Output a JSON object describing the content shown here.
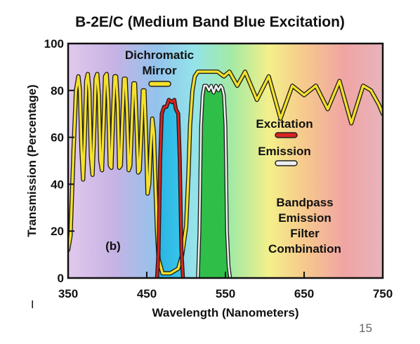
{
  "chart_data": {
    "type": "line",
    "title": "B-2E/C (Medium Band Blue Excitation)",
    "xlabel": "Wavelength (Nanometers)",
    "ylabel": "Transmission (Percentage)",
    "xlim": [
      350,
      750
    ],
    "ylim": [
      0,
      100
    ],
    "xticks": [
      "350",
      "450",
      "550",
      "650",
      "750"
    ],
    "yticks": [
      "0",
      "20",
      "40",
      "60",
      "80",
      "100"
    ],
    "grid": false,
    "panel_label": "(b)",
    "series": [
      {
        "name": "Dichromatic Mirror",
        "color": "#f5e12b",
        "x": [
          347,
          350,
          353,
          357,
          360,
          363,
          365,
          367,
          369,
          371,
          373,
          375,
          377,
          379,
          381,
          383,
          385,
          387,
          389,
          391,
          393,
          395,
          397,
          399,
          401,
          403,
          405,
          407,
          409,
          411,
          413,
          415,
          417,
          419,
          421,
          423,
          425,
          427,
          429,
          431,
          433,
          435,
          437,
          439,
          441,
          443,
          445,
          447,
          449,
          451,
          453,
          455,
          457,
          459,
          461,
          463,
          465,
          470,
          480,
          490,
          495,
          500,
          503,
          505,
          508,
          511,
          515,
          520,
          530,
          540,
          548,
          555,
          565,
          575,
          590,
          605,
          620,
          635,
          650,
          665,
          680,
          695,
          710,
          725,
          735,
          745,
          750
        ],
        "y": [
          12,
          12,
          18,
          55,
          80,
          86,
          80,
          55,
          42,
          58,
          84,
          87,
          80,
          52,
          44,
          62,
          85,
          87,
          78,
          50,
          46,
          65,
          86,
          87,
          76,
          48,
          47,
          68,
          86,
          86,
          74,
          47,
          48,
          68,
          85,
          85,
          70,
          46,
          48,
          66,
          83,
          83,
          66,
          45,
          46,
          62,
          80,
          80,
          60,
          36,
          40,
          56,
          68,
          62,
          40,
          20,
          8,
          2,
          2,
          4,
          10,
          22,
          45,
          65,
          80,
          86,
          88,
          88,
          88,
          88,
          86,
          88,
          82,
          88,
          76,
          86,
          68,
          82,
          78,
          82,
          72,
          84,
          66,
          82,
          80,
          74,
          70
        ]
      },
      {
        "name": "Excitation",
        "color": "#d9231f",
        "x": [
          463,
          465,
          467,
          469,
          472,
          475,
          478,
          482,
          485,
          487,
          490,
          492,
          494,
          496
        ],
        "y": [
          0,
          12,
          50,
          70,
          73,
          73,
          76,
          75,
          76,
          72,
          70,
          50,
          12,
          0
        ]
      },
      {
        "name": "Emission",
        "color": "#eeeeee",
        "x": [
          515,
          517,
          519,
          521,
          523,
          526,
          529,
          532,
          535,
          538,
          541,
          544,
          546,
          548,
          550,
          552,
          554,
          556
        ],
        "y": [
          0,
          20,
          65,
          78,
          82,
          82,
          80,
          82,
          79,
          82,
          80,
          82,
          81,
          78,
          65,
          20,
          5,
          0
        ]
      }
    ],
    "annotations": {
      "mirror_label": [
        "Dichromatic",
        "Mirror"
      ],
      "excitation_label": "Excitation",
      "emission_label": "Emission",
      "combo_label": [
        "Bandpass",
        "Emission",
        "Filter",
        "Combination"
      ]
    }
  },
  "slide": {
    "number": "15",
    "marker": "I"
  }
}
